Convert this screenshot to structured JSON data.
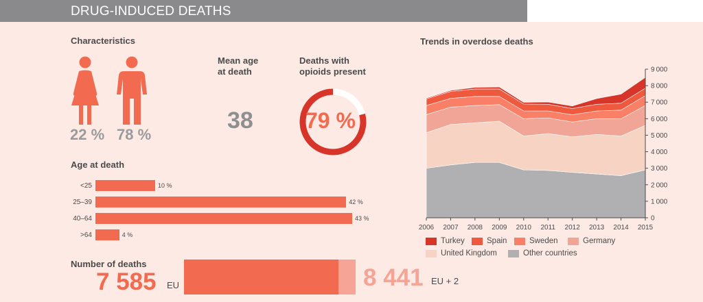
{
  "header": {
    "title": "DRUG-INDUCED DEATHS"
  },
  "characteristics": {
    "title": "Characteristics",
    "female_pct": "22 %",
    "male_pct": "78 %"
  },
  "mean_age": {
    "title_line1": "Mean age",
    "title_line2": "at death",
    "value": "38"
  },
  "opioids": {
    "title_line1": "Deaths with",
    "title_line2": "opioids present",
    "value": "79 %",
    "fraction": 0.79
  },
  "age_at_death": {
    "title": "Age at death",
    "bars": [
      {
        "label": "<25",
        "value": 10,
        "value_label": "10 %"
      },
      {
        "label": "25–39",
        "value": 42,
        "value_label": "42 %"
      },
      {
        "label": "40–64",
        "value": 43,
        "value_label": "43 %"
      },
      {
        "label": ">64",
        "value": 4,
        "value_label": "4 %"
      }
    ]
  },
  "number_of_deaths": {
    "title": "Number of deaths",
    "eu_value": "7 585",
    "eu_label": "EU",
    "eu_number": 7585,
    "eu2_value": "8 441",
    "eu2_label": "EU + 2",
    "eu2_number": 8441
  },
  "colors": {
    "accent": "#f26a4f",
    "light_accent": "#f5a495",
    "grey_text": "#9a9a9c",
    "turkey": "#d7342a",
    "spain": "#ef5a3f",
    "sweden": "#f98066",
    "germany": "#f1a597",
    "uk": "#f6d3c2",
    "other": "#b0b0b3"
  },
  "chart_data": {
    "type": "area",
    "title": "Trends in overdose deaths",
    "x": [
      2006,
      2007,
      2008,
      2009,
      2010,
      2011,
      2012,
      2013,
      2014,
      2015
    ],
    "ylim": [
      0,
      9000
    ],
    "yticks": [
      "0",
      "1000",
      "2000",
      "3000",
      "4000",
      "5000",
      "6000",
      "7000",
      "8000",
      "9000"
    ],
    "stacked": true,
    "series": [
      {
        "name": "Other countries",
        "color": "#b0b0b3",
        "values": [
          3000,
          3200,
          3350,
          3350,
          2900,
          2870,
          2750,
          2650,
          2550,
          2900
        ]
      },
      {
        "name": "United Kingdom",
        "color": "#f6d3c2",
        "values": [
          2150,
          2450,
          2400,
          2500,
          2050,
          2230,
          2150,
          2400,
          2400,
          2700
        ]
      },
      {
        "name": "Germany",
        "color": "#f1a597",
        "values": [
          1100,
          1050,
          1050,
          1000,
          1050,
          950,
          900,
          950,
          1050,
          1200
        ]
      },
      {
        "name": "Sweden",
        "color": "#f98066",
        "values": [
          550,
          530,
          550,
          500,
          470,
          420,
          440,
          470,
          520,
          600
        ]
      },
      {
        "name": "Spain",
        "color": "#ef5a3f",
        "values": [
          400,
          420,
          450,
          450,
          420,
          400,
          380,
          400,
          420,
          450
        ]
      },
      {
        "name": "Turkey",
        "color": "#d7342a",
        "values": [
          50,
          60,
          100,
          120,
          100,
          140,
          150,
          350,
          550,
          650
        ]
      }
    ],
    "legend": [
      {
        "name": "Turkey",
        "color": "#d7342a"
      },
      {
        "name": "Spain",
        "color": "#ef5a3f"
      },
      {
        "name": "Sweden",
        "color": "#f98066"
      },
      {
        "name": "Germany",
        "color": "#f1a597"
      },
      {
        "name": "United Kingdom",
        "color": "#f6d3c2"
      },
      {
        "name": "Other countries",
        "color": "#b0b0b3"
      }
    ],
    "legend_position": "bottom",
    "grid": false
  }
}
